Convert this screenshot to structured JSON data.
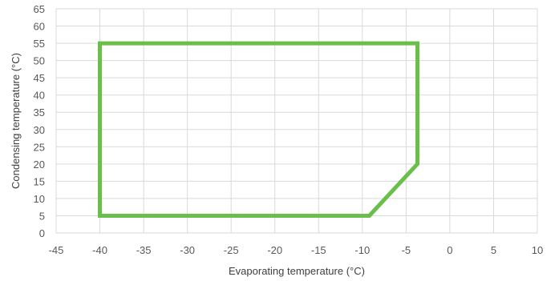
{
  "chart_data": {
    "type": "line",
    "title": "",
    "xlabel": "Evaporating temperature (°C)",
    "ylabel": "Condensing temperature (°C)",
    "xlim": [
      -45,
      10
    ],
    "ylim": [
      0,
      65
    ],
    "xticks": [
      "-45",
      "-40",
      "-35",
      "-30",
      "-25",
      "-20",
      "-15",
      "-10",
      "-5",
      "0",
      "5",
      "10"
    ],
    "yticks": [
      "0",
      "5",
      "10",
      "15",
      "20",
      "25",
      "30",
      "35",
      "40",
      "45",
      "50",
      "55",
      "60",
      "65"
    ],
    "grid": true,
    "legend": "none",
    "series": [
      {
        "color": "#6abf4b",
        "closed": true,
        "points": [
          {
            "x": -40,
            "y": 55
          },
          {
            "x": -3.7,
            "y": 55
          },
          {
            "x": -3.7,
            "y": 20
          },
          {
            "x": -9.2,
            "y": 5
          },
          {
            "x": -40,
            "y": 5
          }
        ]
      }
    ]
  }
}
